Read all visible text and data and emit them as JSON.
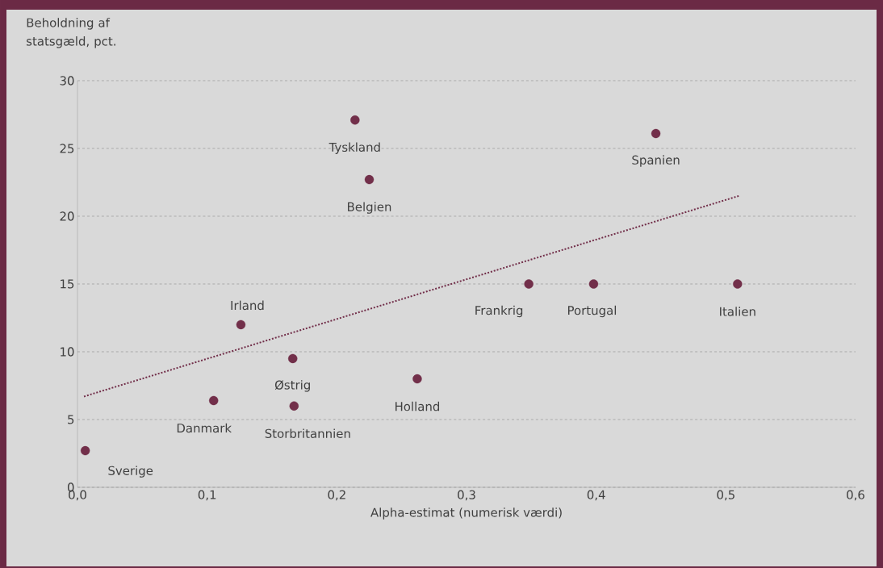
{
  "chart_data": {
    "type": "scatter",
    "ylabel": "Beholdning af statsgæld, pct.",
    "xlabel": "Alpha-estimat (numerisk værdi)",
    "xlim": [
      0,
      0.6
    ],
    "ylim": [
      0,
      30
    ],
    "xticks": [
      {
        "value": 0,
        "label": "0,0"
      },
      {
        "value": 0.1,
        "label": "0,1"
      },
      {
        "value": 0.2,
        "label": "0,2"
      },
      {
        "value": 0.3,
        "label": "0,3"
      },
      {
        "value": 0.4,
        "label": "0,4"
      },
      {
        "value": 0.5,
        "label": "0,5"
      },
      {
        "value": 0.6,
        "label": "0,6"
      }
    ],
    "yticks": [
      0,
      5,
      10,
      15,
      20,
      25,
      30
    ],
    "grid": "y",
    "series": [
      {
        "color": "#722f4a",
        "marker": "circle",
        "x": [
          0.006,
          0.105,
          0.126,
          0.166,
          0.167,
          0.214,
          0.225,
          0.262,
          0.348,
          0.398,
          0.446,
          0.509
        ],
        "values": [
          2.7,
          6.4,
          12.0,
          9.5,
          6.0,
          27.1,
          22.7,
          8.0,
          15.0,
          15.0,
          26.1,
          15.0
        ]
      },
      {
        "type": "line",
        "color": "#722f4a",
        "line_style": "dotted",
        "marker": "none",
        "x": [
          0.005,
          0.51
        ],
        "values": [
          6.7,
          21.5
        ]
      }
    ],
    "annotations": [
      {
        "text": "Sverige",
        "x": 0.006,
        "y": 2.7
      },
      {
        "text": "Danmark",
        "x": 0.105,
        "y": 6.4
      },
      {
        "text": "Irland",
        "x": 0.126,
        "y": 12.0
      },
      {
        "text": "Østrig",
        "x": 0.166,
        "y": 9.5
      },
      {
        "text": "Storbritannien",
        "x": 0.167,
        "y": 6.0
      },
      {
        "text": "Tyskland",
        "x": 0.214,
        "y": 27.1
      },
      {
        "text": "Belgien",
        "x": 0.225,
        "y": 22.7
      },
      {
        "text": "Holland",
        "x": 0.262,
        "y": 8.0
      },
      {
        "text": "Frankrig",
        "x": 0.348,
        "y": 15.0
      },
      {
        "text": "Portugal",
        "x": 0.398,
        "y": 15.0
      },
      {
        "text": "Spanien",
        "x": 0.446,
        "y": 26.1
      },
      {
        "text": "Italien",
        "x": 0.509,
        "y": 15.0
      }
    ]
  }
}
